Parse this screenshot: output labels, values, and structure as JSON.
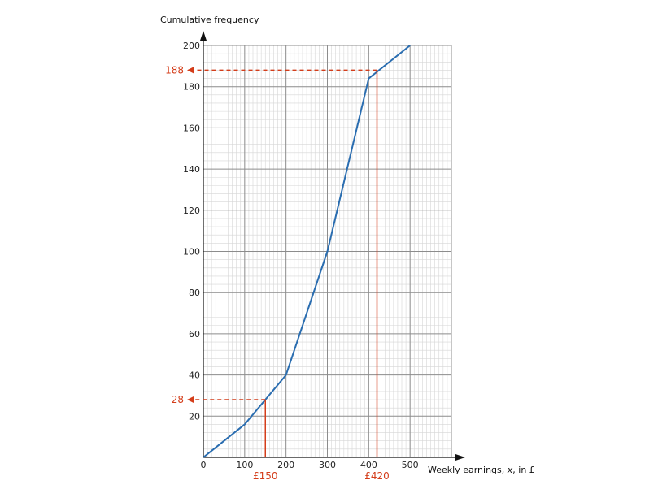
{
  "chart_data": {
    "type": "line",
    "title": "",
    "ylabel": "Cumulative frequency",
    "xlabel_prefix": "Weekly earnings, ",
    "xlabel_var": "x",
    "xlabel_suffix": ", in £",
    "xlim": [
      0,
      600
    ],
    "ylim": [
      0,
      200
    ],
    "x_ticks": [
      0,
      100,
      200,
      300,
      400,
      500
    ],
    "y_ticks": [
      20,
      40,
      60,
      80,
      100,
      120,
      140,
      160,
      180,
      200
    ],
    "grid": true,
    "series": [
      {
        "x": [
          0,
          100,
          200,
          300,
          400,
          500
        ],
        "y": [
          0,
          16,
          40,
          100,
          184,
          200
        ],
        "color": "#2a6db0"
      }
    ],
    "annotations": [
      {
        "x": 150,
        "y": 28,
        "x_label": "£150",
        "y_label": "28"
      },
      {
        "x": 420,
        "y": 188,
        "x_label": "£420",
        "y_label": "188"
      }
    ],
    "annotation_color": "#d43d1a"
  }
}
